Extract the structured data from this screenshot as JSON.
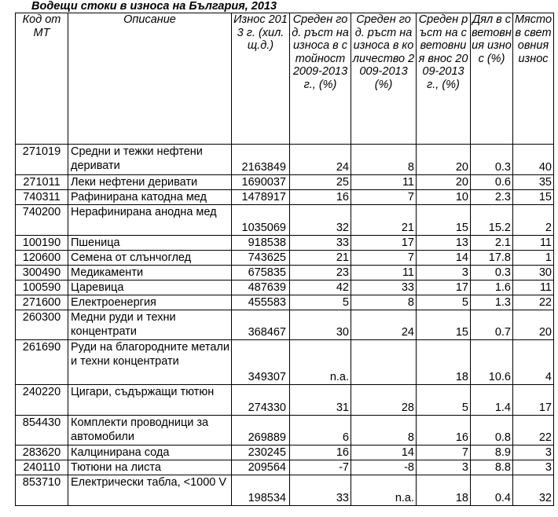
{
  "title": "Водещи стоки в износа на България, 2013",
  "table": {
    "headers": [
      "Код от МТ",
      "Описание",
      "Износ 2013 г. (хил.щ.д.)",
      "Среден год. ръст на износа в стойност 2009-2013 г., (%)",
      "Среден год. ръст на износа в количество 2009-2013 (%)",
      "Среден ръст на световния внос 2009-2013 г., (%)",
      "Дял в световния износ (%)",
      "Място в световния износ"
    ],
    "rows": [
      {
        "code": "271019",
        "description": "Средни и тежки нефтени деривати",
        "exports": "2163849",
        "value_growth": "24",
        "quantity_growth": "8",
        "world_import_growth": "20",
        "world_share": "0.3",
        "world_rank": "40"
      },
      {
        "code": "271011",
        "description": "Леки нефтени деривати",
        "exports": "1690037",
        "value_growth": "25",
        "quantity_growth": "11",
        "world_import_growth": "20",
        "world_share": "0.6",
        "world_rank": "35"
      },
      {
        "code": "740311",
        "description": "Рафинирана катодна мед",
        "exports": "1478917",
        "value_growth": "16",
        "quantity_growth": "7",
        "world_import_growth": "10",
        "world_share": "2.3",
        "world_rank": "15"
      },
      {
        "code": "740200",
        "description": "Нерафинирана анодна мед",
        "exports": "1035069",
        "value_growth": "32",
        "quantity_growth": "21",
        "world_import_growth": "15",
        "world_share": "15.2",
        "world_rank": "2"
      },
      {
        "code": "100190",
        "description": "Пшеница",
        "exports": "918538",
        "value_growth": "33",
        "quantity_growth": "17",
        "world_import_growth": "13",
        "world_share": "2.1",
        "world_rank": "11"
      },
      {
        "code": "120600",
        "description": "Семена от слънчоглед",
        "exports": "743625",
        "value_growth": "21",
        "quantity_growth": "7",
        "world_import_growth": "14",
        "world_share": "17.8",
        "world_rank": "1"
      },
      {
        "code": "300490",
        "description": "Медикаменти",
        "exports": "675835",
        "value_growth": "23",
        "quantity_growth": "11",
        "world_import_growth": "3",
        "world_share": "0.3",
        "world_rank": "30"
      },
      {
        "code": "100590",
        "description": "Царевица",
        "exports": "487639",
        "value_growth": "42",
        "quantity_growth": "33",
        "world_import_growth": "17",
        "world_share": "1.6",
        "world_rank": "11"
      },
      {
        "code": "271600",
        "description": "Електроенергия",
        "exports": "455583",
        "value_growth": "5",
        "quantity_growth": "8",
        "world_import_growth": "5",
        "world_share": "1.3",
        "world_rank": "22"
      },
      {
        "code": "260300",
        "description": "Медни руди и техни концентрати",
        "exports": "368467",
        "value_growth": "30",
        "quantity_growth": "24",
        "world_import_growth": "15",
        "world_share": "0.7",
        "world_rank": "20"
      },
      {
        "code": "261690",
        "description": "Руди на благородните метали и техни концентрати",
        "exports": "349307",
        "value_growth": "n.a.",
        "quantity_growth": "",
        "world_import_growth": "18",
        "world_share": "10.6",
        "world_rank": "4"
      },
      {
        "code": "240220",
        "description": "Цигари, съдържащи тютюн",
        "exports": "274330",
        "value_growth": "31",
        "quantity_growth": "28",
        "world_import_growth": "5",
        "world_share": "1.4",
        "world_rank": "17"
      },
      {
        "code": "854430",
        "description": "Комплекти проводници за автомобили",
        "exports": "269889",
        "value_growth": "6",
        "quantity_growth": "8",
        "world_import_growth": "16",
        "world_share": "0.8",
        "world_rank": "22"
      },
      {
        "code": "283620",
        "description": "Калцинирана сода",
        "exports": "230245",
        "value_growth": "16",
        "quantity_growth": "14",
        "world_import_growth": "7",
        "world_share": "8.9",
        "world_rank": "3"
      },
      {
        "code": "240110",
        "description": "Тютюни на листа",
        "exports": "209564",
        "value_growth": "-7",
        "quantity_growth": "-8",
        "world_import_growth": "3",
        "world_share": "8.8",
        "world_rank": "3"
      },
      {
        "code": "853710",
        "description": "Електрически табла, <1000 V",
        "exports": "198534",
        "value_growth": "33",
        "quantity_growth": "n.a.",
        "world_import_growth": "18",
        "world_share": "0.4",
        "world_rank": "32"
      }
    ]
  }
}
